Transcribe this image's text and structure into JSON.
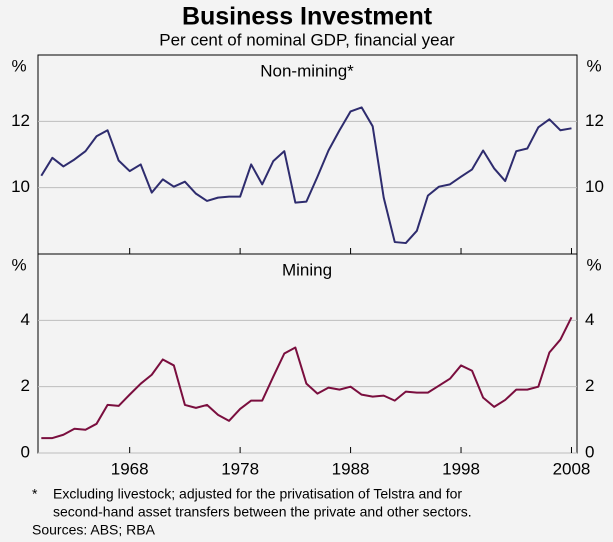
{
  "title": "Business Investment",
  "subtitle": "Per cent of nominal GDP, financial year",
  "notes": [
    "*",
    "Excluding livestock; adjusted for the privatisation of Telstra and for",
    "second-hand asset transfers between the private and other sectors."
  ],
  "sources": "Sources: ABS; RBA",
  "chart_data": [
    {
      "type": "line",
      "title": "Non-mining*",
      "y_unit": "%",
      "color": "#2e2c6e",
      "x": [
        1960,
        1961,
        1962,
        1963,
        1964,
        1965,
        1966,
        1967,
        1968,
        1969,
        1970,
        1971,
        1972,
        1973,
        1974,
        1975,
        1976,
        1977,
        1978,
        1979,
        1980,
        1981,
        1982,
        1983,
        1984,
        1985,
        1986,
        1987,
        1988,
        1989,
        1990,
        1991,
        1992,
        1993,
        1994,
        1995,
        1996,
        1997,
        1998,
        1999,
        2000,
        2001,
        2002,
        2003,
        2004,
        2005,
        2006,
        2007,
        2008
      ],
      "values": [
        10.36,
        10.9,
        10.64,
        10.85,
        11.1,
        11.55,
        11.73,
        10.82,
        10.5,
        10.7,
        9.85,
        10.25,
        10.03,
        10.18,
        9.82,
        9.6,
        9.7,
        9.73,
        9.73,
        10.7,
        10.1,
        10.8,
        11.1,
        9.55,
        9.58,
        10.33,
        11.12,
        11.73,
        12.3,
        12.42,
        11.85,
        9.7,
        8.36,
        8.33,
        8.7,
        9.76,
        10.03,
        10.1,
        10.33,
        10.55,
        11.12,
        10.58,
        10.2,
        11.1,
        11.18,
        11.82,
        12.06,
        11.73,
        11.79
      ],
      "xlim": [
        1959.7,
        2008.5
      ],
      "xticks": [
        1968,
        1978,
        1988,
        1998,
        2008
      ],
      "ylim": [
        8,
        14
      ],
      "yticks": [
        10,
        12
      ],
      "grid": true
    },
    {
      "type": "line",
      "title": "Mining",
      "y_unit": "%",
      "color": "#7a0e3e",
      "x": [
        1960,
        1961,
        1962,
        1963,
        1964,
        1965,
        1966,
        1967,
        1968,
        1969,
        1970,
        1971,
        1972,
        1973,
        1974,
        1975,
        1976,
        1977,
        1978,
        1979,
        1980,
        1981,
        1982,
        1983,
        1984,
        1985,
        1986,
        1987,
        1988,
        1989,
        1990,
        1991,
        1992,
        1993,
        1994,
        1995,
        1996,
        1997,
        1998,
        1999,
        2000,
        2001,
        2002,
        2003,
        2004,
        2005,
        2006,
        2007,
        2008
      ],
      "values": [
        0.45,
        0.45,
        0.55,
        0.73,
        0.7,
        0.88,
        1.45,
        1.42,
        1.76,
        2.09,
        2.36,
        2.82,
        2.64,
        1.45,
        1.36,
        1.45,
        1.15,
        0.97,
        1.33,
        1.58,
        1.58,
        2.3,
        3.0,
        3.18,
        2.09,
        1.79,
        1.97,
        1.91,
        2.0,
        1.76,
        1.7,
        1.73,
        1.58,
        1.85,
        1.82,
        1.82,
        2.03,
        2.24,
        2.64,
        2.48,
        1.67,
        1.39,
        1.6,
        1.91,
        1.91,
        2.0,
        3.03,
        3.42,
        4.09
      ],
      "xlim": [
        1959.7,
        2008.5
      ],
      "xticks": [
        1968,
        1978,
        1988,
        1998,
        2008
      ],
      "ylim": [
        0,
        6
      ],
      "yticks": [
        0,
        2,
        4
      ],
      "grid": true
    }
  ]
}
